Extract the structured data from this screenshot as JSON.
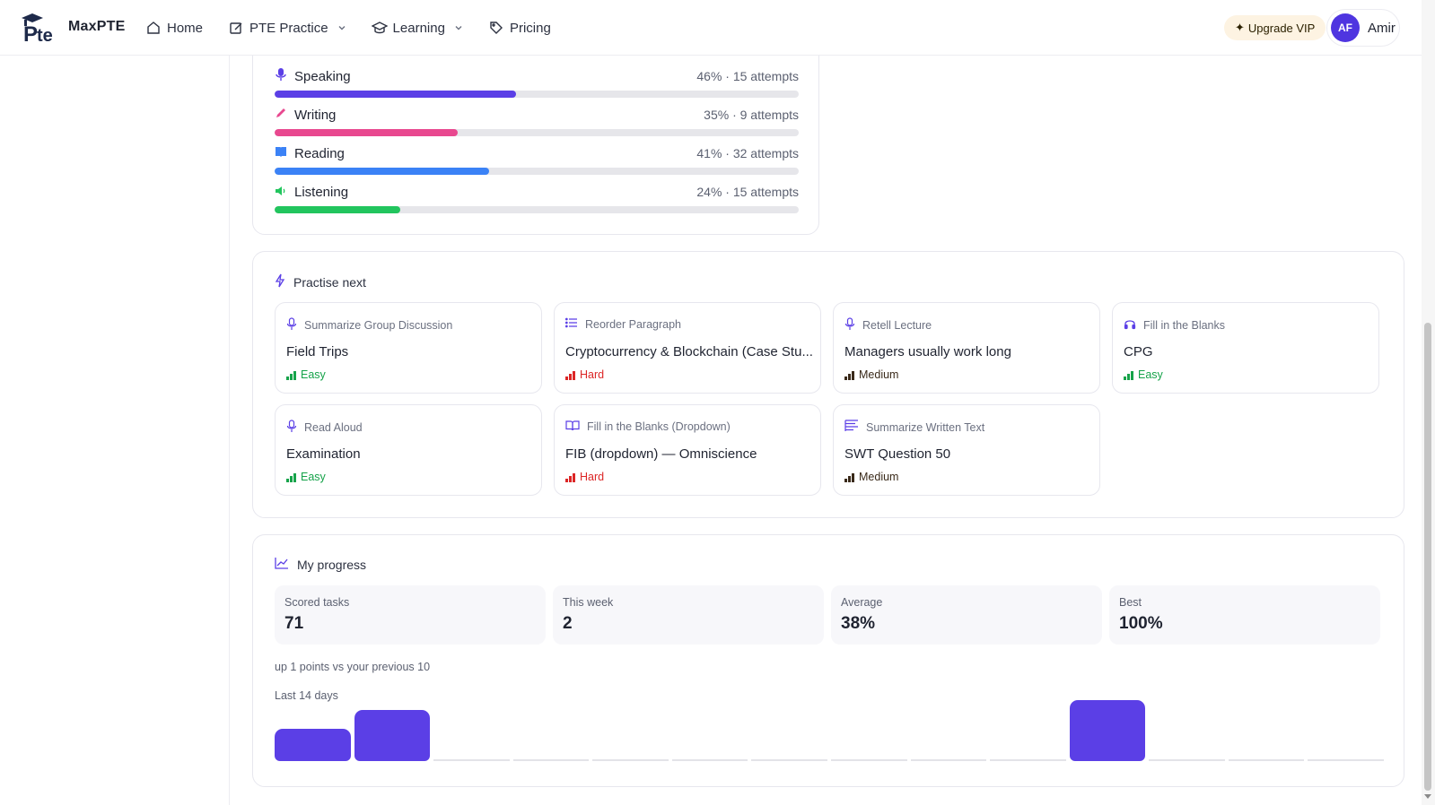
{
  "nav": {
    "brand": "MaxPTE",
    "links": [
      {
        "label": "Home",
        "icon": "home-icon",
        "dropdown": false
      },
      {
        "label": "PTE Practice",
        "icon": "edit-icon",
        "dropdown": true
      },
      {
        "label": "Learning",
        "icon": "graduation-cap-icon",
        "dropdown": true
      },
      {
        "label": "Pricing",
        "icon": "tag-icon",
        "dropdown": false
      }
    ],
    "upgrade_label": "Upgrade VIP",
    "avatar_initials": "AF",
    "user_name": "Amir"
  },
  "skills": [
    {
      "name": "Speaking",
      "meta": "46% · 15 attempts",
      "percent": 46,
      "color": "#5b3fe6",
      "icon": "microphone-icon"
    },
    {
      "name": "Writing",
      "meta": "35% · 9 attempts",
      "percent": 35,
      "color": "#e8488f",
      "icon": "pencil-icon"
    },
    {
      "name": "Reading",
      "meta": "41% · 32 attempts",
      "percent": 41,
      "color": "#3b82f6",
      "icon": "book-icon"
    },
    {
      "name": "Listening",
      "meta": "24% · 15 attempts",
      "percent": 24,
      "color": "#22c55e",
      "icon": "speaker-icon"
    }
  ],
  "practise_next": {
    "title": "Practise next",
    "tasks": [
      {
        "type": "Summarize Group Discussion",
        "title": "Field Trips",
        "difficulty": "Easy",
        "icon": "microphone-icon"
      },
      {
        "type": "Reorder Paragraph",
        "title": "Cryptocurrency & Blockchain (Case Stu...",
        "difficulty": "Hard",
        "icon": "list-icon"
      },
      {
        "type": "Retell Lecture",
        "title": "Managers usually work long",
        "difficulty": "Medium",
        "icon": "microphone-icon"
      },
      {
        "type": "Fill in the Blanks",
        "title": "CPG",
        "difficulty": "Easy",
        "icon": "headphones-icon"
      },
      {
        "type": "Read Aloud",
        "title": "Examination",
        "difficulty": "Easy",
        "icon": "microphone-icon"
      },
      {
        "type": "Fill in the Blanks (Dropdown)",
        "title": "FIB (dropdown) — Omniscience",
        "difficulty": "Hard",
        "icon": "book-open-icon"
      },
      {
        "type": "Summarize Written Text",
        "title": "SWT Question 50",
        "difficulty": "Medium",
        "icon": "text-lines-icon"
      }
    ]
  },
  "difficulty_colors": {
    "Easy": "#16a34a",
    "Hard": "#dc2626",
    "Medium": "#3a2a1a"
  },
  "progress": {
    "title": "My progress",
    "stats": [
      {
        "label": "Scored tasks",
        "value": "71"
      },
      {
        "label": "This week",
        "value": "2"
      },
      {
        "label": "Average",
        "value": "38%"
      },
      {
        "label": "Best",
        "value": "100%"
      }
    ],
    "delta_text": "up 1 points vs your previous 10",
    "chart_label": "Last 14 days",
    "daily_activity": [
      1,
      2,
      0,
      0,
      0,
      0,
      0,
      0,
      0,
      0,
      3,
      0,
      0,
      0
    ],
    "accent": "#5b3fe6"
  }
}
